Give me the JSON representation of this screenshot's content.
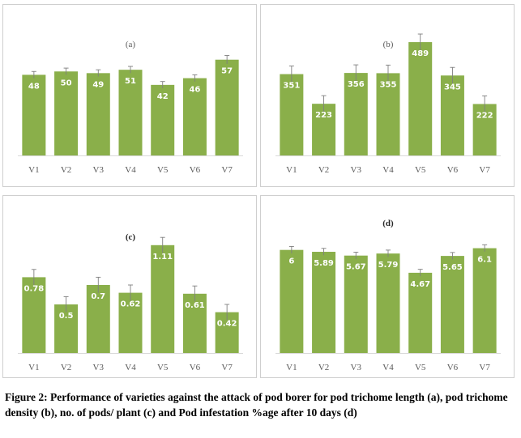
{
  "chart_data": [
    {
      "type": "bar",
      "title": "(a)",
      "categories": [
        "V1",
        "V2",
        "V3",
        "V4",
        "V5",
        "V6",
        "V7"
      ],
      "values": [
        48,
        50,
        49,
        51,
        42,
        46,
        57
      ],
      "error": [
        2,
        2,
        2,
        2,
        2,
        2,
        2.5
      ],
      "ylim": [
        0,
        80
      ],
      "grid": false,
      "bar_color": "#8aaf4a"
    },
    {
      "type": "bar",
      "title": "(b)",
      "categories": [
        "V1",
        "V2",
        "V3",
        "V4",
        "V5",
        "V6",
        "V7"
      ],
      "values": [
        351,
        223,
        356,
        355,
        489,
        345,
        222
      ],
      "error": [
        35,
        35,
        35,
        35,
        35,
        35,
        35
      ],
      "ylim": [
        0,
        580
      ],
      "grid": false,
      "bar_color": "#8aaf4a"
    },
    {
      "type": "bar",
      "title": "(c)",
      "categories": [
        "V1",
        "V2",
        "V3",
        "V4",
        "V5",
        "V6",
        "V7"
      ],
      "values": [
        0.78,
        0.5,
        0.7,
        0.62,
        1.11,
        0.61,
        0.42
      ],
      "error": [
        0.08,
        0.08,
        0.08,
        0.08,
        0.08,
        0.08,
        0.08
      ],
      "ylim": [
        0,
        1.45
      ],
      "grid": false,
      "bar_color": "#8aaf4a"
    },
    {
      "type": "bar",
      "title": "(d)",
      "categories": [
        "V1",
        "V2",
        "V3",
        "V4",
        "V5",
        "V6",
        "V7"
      ],
      "values": [
        6,
        5.89,
        5.67,
        5.79,
        4.67,
        5.65,
        6.1
      ],
      "error": [
        0.2,
        0.2,
        0.2,
        0.2,
        0.2,
        0.2,
        0.2
      ],
      "ylim": [
        0,
        8.2
      ],
      "grid": false,
      "bar_color": "#8aaf4a"
    }
  ],
  "caption": "Figure 2: Performance of varieties against the attack of pod borer for pod trichome length (a), pod trichome density (b), no. of pods/ plant (c) and Pod infestation %age after 10 days (d)"
}
